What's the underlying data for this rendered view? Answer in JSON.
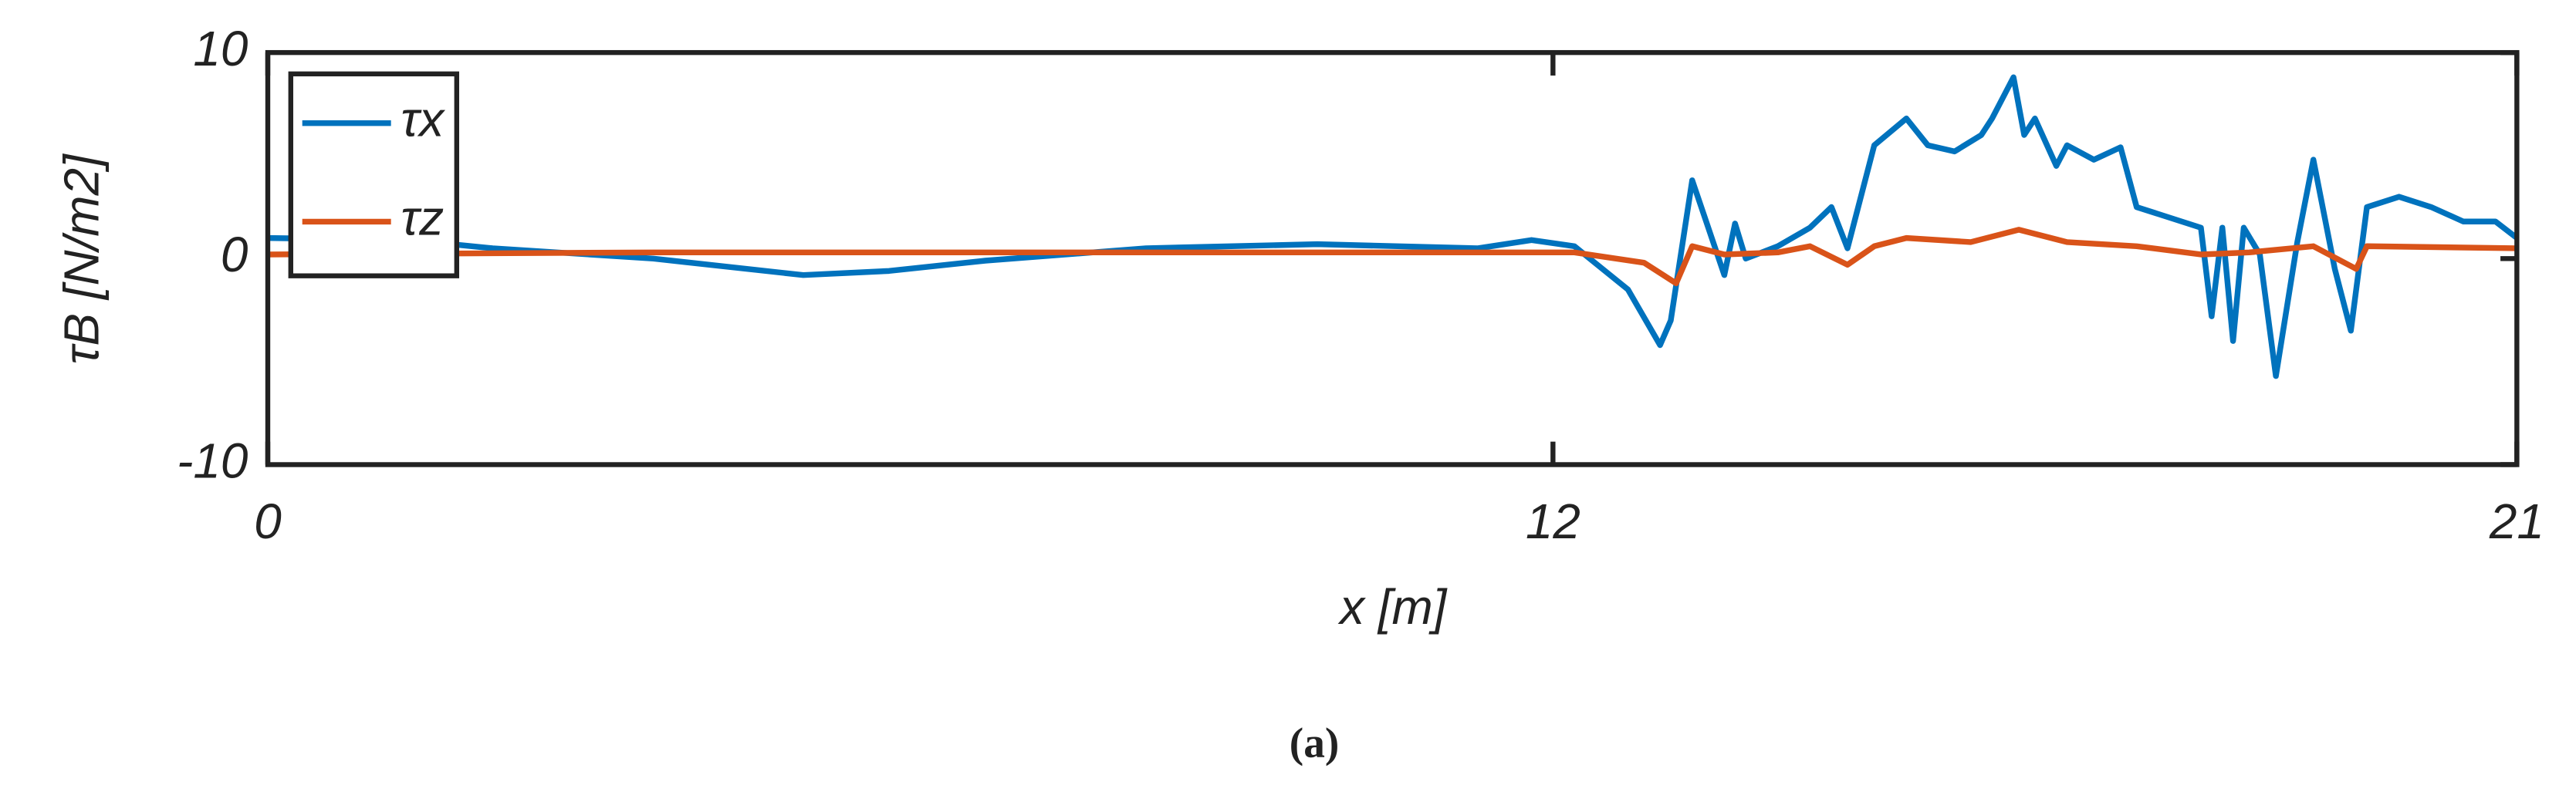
{
  "chart_data": {
    "type": "line",
    "xlabel": "x [m]",
    "ylabel": "τB [N/m2]",
    "caption": "(a)",
    "xlim": [
      0,
      21
    ],
    "ylim": [
      -10,
      10
    ],
    "xticks": [
      0,
      12,
      21
    ],
    "yticks": [
      -10,
      0,
      10
    ],
    "series": [
      {
        "name": "τx",
        "color": "#0072bd",
        "x": [
          0,
          1.33,
          2.1,
          3.6,
          5.0,
          5.8,
          6.7,
          8.2,
          9.8,
          11.3,
          11.8,
          12.2,
          12.7,
          13.0,
          13.1,
          13.3,
          13.45,
          13.6,
          13.7,
          13.8,
          14.1,
          14.4,
          14.6,
          14.75,
          15.0,
          15.3,
          15.5,
          15.75,
          16.0,
          16.1,
          16.3,
          16.4,
          16.5,
          16.7,
          16.8,
          17.05,
          17.3,
          17.45,
          17.75,
          18.05,
          18.15,
          18.25,
          18.35,
          18.45,
          18.6,
          18.75,
          18.95,
          19.1,
          19.3,
          19.45,
          19.6,
          19.9,
          20.2,
          20.5,
          20.8,
          21
        ],
        "values": [
          1,
          0.9,
          0.5,
          0,
          -0.8,
          -0.6,
          -0.1,
          0.5,
          0.7,
          0.5,
          0.9,
          0.6,
          -1.5,
          -4.2,
          -3,
          3.8,
          1.5,
          -0.8,
          1.7,
          0,
          0.6,
          1.5,
          2.5,
          0.5,
          5.5,
          6.8,
          5.5,
          5.2,
          6,
          6.8,
          8.8,
          6,
          6.8,
          4.5,
          5.5,
          4.8,
          5.4,
          2.5,
          2,
          1.5,
          -2.8,
          1.5,
          -4,
          1.5,
          0.2,
          -5.7,
          0.8,
          4.8,
          -0.5,
          -3.5,
          2.5,
          3,
          2.5,
          1.8,
          1.8,
          1
        ]
      },
      {
        "name": "τz",
        "color": "#d95319",
        "x": [
          0,
          3.6,
          11.3,
          12.2,
          12.85,
          13.15,
          13.3,
          13.6,
          14.1,
          14.4,
          14.75,
          15.0,
          15.3,
          15.9,
          16.35,
          16.8,
          17.45,
          18.05,
          18.5,
          19.1,
          19.5,
          19.6,
          21
        ],
        "values": [
          0.2,
          0.3,
          0.3,
          0.3,
          -0.2,
          -1.2,
          0.6,
          0.2,
          0.3,
          0.6,
          -0.3,
          0.6,
          1,
          0.8,
          1.4,
          0.8,
          0.6,
          0.2,
          0.3,
          0.6,
          -0.5,
          0.6,
          0.5
        ]
      }
    ]
  }
}
